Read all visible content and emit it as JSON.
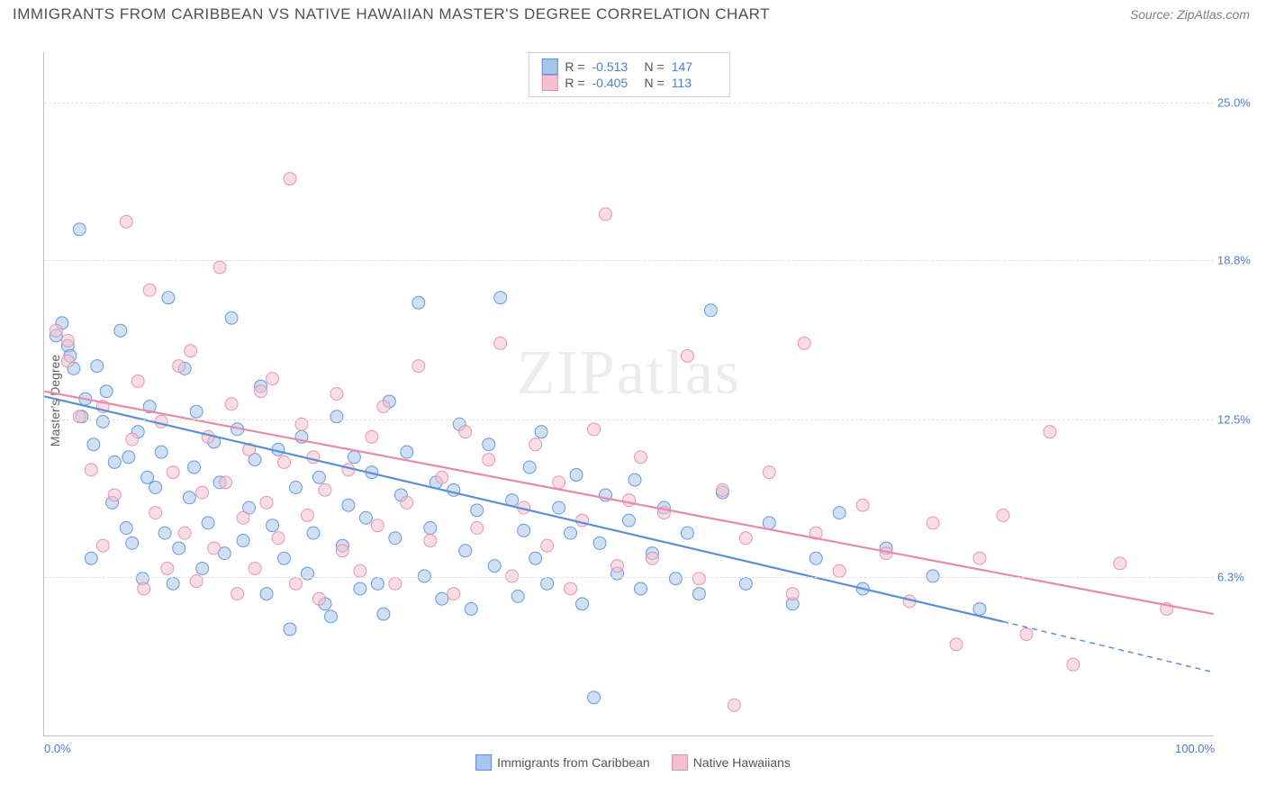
{
  "header": {
    "title": "IMMIGRANTS FROM CARIBBEAN VS NATIVE HAWAIIAN MASTER'S DEGREE CORRELATION CHART",
    "source": "Source: ZipAtlas.com"
  },
  "chart": {
    "type": "scatter",
    "ylabel": "Master's Degree",
    "watermark": "ZIPatlas",
    "background_color": "#ffffff",
    "grid_color": "#e0e0e0",
    "axis_color": "#c0c0c0",
    "tick_color": "#4a7fd6",
    "tick_fontsize": 13,
    "label_fontsize": 14,
    "xlim": [
      0,
      100
    ],
    "ylim": [
      0,
      27
    ],
    "yticks": [
      {
        "v": 6.3,
        "label": "6.3%"
      },
      {
        "v": 12.5,
        "label": "12.5%"
      },
      {
        "v": 18.8,
        "label": "18.8%"
      },
      {
        "v": 25.0,
        "label": "25.0%"
      }
    ],
    "xticks": [
      {
        "v": 0,
        "label": "0.0%"
      },
      {
        "v": 100,
        "label": "100.0%"
      }
    ],
    "marker_radius": 7,
    "marker_opacity": 0.55,
    "marker_stroke_opacity": 0.9,
    "series": [
      {
        "id": "caribbean",
        "label": "Immigrants from Caribbean",
        "fill": "#a8c6ed",
        "stroke": "#5b8fd6",
        "r": -0.513,
        "n": 147,
        "trend": {
          "x1": 0,
          "y1": 13.4,
          "x2": 82,
          "y2": 4.5,
          "ext_x2": 100,
          "ext_y2": 2.5,
          "width": 2.2
        },
        "points": [
          [
            1,
            15.8
          ],
          [
            1.5,
            16.3
          ],
          [
            2,
            15.4
          ],
          [
            2.2,
            15.0
          ],
          [
            2.5,
            14.5
          ],
          [
            3,
            20.0
          ],
          [
            3.2,
            12.6
          ],
          [
            3.5,
            13.3
          ],
          [
            4,
            7.0
          ],
          [
            4.2,
            11.5
          ],
          [
            4.5,
            14.6
          ],
          [
            5,
            12.4
          ],
          [
            5.3,
            13.6
          ],
          [
            5.8,
            9.2
          ],
          [
            6,
            10.8
          ],
          [
            6.5,
            16.0
          ],
          [
            7,
            8.2
          ],
          [
            7.2,
            11.0
          ],
          [
            7.5,
            7.6
          ],
          [
            8,
            12.0
          ],
          [
            8.4,
            6.2
          ],
          [
            8.8,
            10.2
          ],
          [
            9,
            13.0
          ],
          [
            9.5,
            9.8
          ],
          [
            10,
            11.2
          ],
          [
            10.3,
            8.0
          ],
          [
            10.6,
            17.3
          ],
          [
            11,
            6.0
          ],
          [
            11.5,
            7.4
          ],
          [
            12,
            14.5
          ],
          [
            12.4,
            9.4
          ],
          [
            12.8,
            10.6
          ],
          [
            13,
            12.8
          ],
          [
            13.5,
            6.6
          ],
          [
            14,
            8.4
          ],
          [
            14.5,
            11.6
          ],
          [
            15,
            10.0
          ],
          [
            15.4,
            7.2
          ],
          [
            16,
            16.5
          ],
          [
            16.5,
            12.1
          ],
          [
            17,
            7.7
          ],
          [
            17.5,
            9.0
          ],
          [
            18,
            10.9
          ],
          [
            18.5,
            13.8
          ],
          [
            19,
            5.6
          ],
          [
            19.5,
            8.3
          ],
          [
            20,
            11.3
          ],
          [
            20.5,
            7.0
          ],
          [
            21,
            4.2
          ],
          [
            21.5,
            9.8
          ],
          [
            22,
            11.8
          ],
          [
            22.5,
            6.4
          ],
          [
            23,
            8.0
          ],
          [
            23.5,
            10.2
          ],
          [
            24,
            5.2
          ],
          [
            24.5,
            4.7
          ],
          [
            25,
            12.6
          ],
          [
            25.5,
            7.5
          ],
          [
            26,
            9.1
          ],
          [
            26.5,
            11.0
          ],
          [
            27,
            5.8
          ],
          [
            27.5,
            8.6
          ],
          [
            28,
            10.4
          ],
          [
            28.5,
            6.0
          ],
          [
            29,
            4.8
          ],
          [
            29.5,
            13.2
          ],
          [
            30,
            7.8
          ],
          [
            30.5,
            9.5
          ],
          [
            31,
            11.2
          ],
          [
            32,
            17.1
          ],
          [
            32.5,
            6.3
          ],
          [
            33,
            8.2
          ],
          [
            33.5,
            10.0
          ],
          [
            34,
            5.4
          ],
          [
            35,
            9.7
          ],
          [
            35.5,
            12.3
          ],
          [
            36,
            7.3
          ],
          [
            36.5,
            5.0
          ],
          [
            37,
            8.9
          ],
          [
            38,
            11.5
          ],
          [
            38.5,
            6.7
          ],
          [
            39,
            17.3
          ],
          [
            40,
            9.3
          ],
          [
            40.5,
            5.5
          ],
          [
            41,
            8.1
          ],
          [
            41.5,
            10.6
          ],
          [
            42,
            7.0
          ],
          [
            42.5,
            12.0
          ],
          [
            43,
            6.0
          ],
          [
            44,
            9.0
          ],
          [
            45,
            8.0
          ],
          [
            45.5,
            10.3
          ],
          [
            46,
            5.2
          ],
          [
            47,
            1.5
          ],
          [
            47.5,
            7.6
          ],
          [
            48,
            9.5
          ],
          [
            49,
            6.4
          ],
          [
            50,
            8.5
          ],
          [
            50.5,
            10.1
          ],
          [
            51,
            5.8
          ],
          [
            52,
            7.2
          ],
          [
            53,
            9.0
          ],
          [
            54,
            6.2
          ],
          [
            55,
            8.0
          ],
          [
            56,
            5.6
          ],
          [
            57,
            16.8
          ],
          [
            58,
            9.6
          ],
          [
            60,
            6.0
          ],
          [
            62,
            8.4
          ],
          [
            64,
            5.2
          ],
          [
            66,
            7.0
          ],
          [
            68,
            8.8
          ],
          [
            70,
            5.8
          ],
          [
            72,
            7.4
          ],
          [
            76,
            6.3
          ],
          [
            80,
            5.0
          ]
        ]
      },
      {
        "id": "hawaiian",
        "label": "Native Hawaiians",
        "fill": "#f4c1ce",
        "stroke": "#e78bab",
        "r": -0.405,
        "n": 113,
        "trend": {
          "x1": 0,
          "y1": 13.6,
          "x2": 100,
          "y2": 4.8,
          "width": 2.2
        },
        "points": [
          [
            1,
            16.0
          ],
          [
            2,
            14.8
          ],
          [
            2,
            15.6
          ],
          [
            3,
            12.6
          ],
          [
            4,
            10.5
          ],
          [
            5,
            13.0
          ],
          [
            5,
            7.5
          ],
          [
            6,
            9.5
          ],
          [
            7,
            20.3
          ],
          [
            7.5,
            11.7
          ],
          [
            8,
            14.0
          ],
          [
            8.5,
            5.8
          ],
          [
            9,
            17.6
          ],
          [
            9.5,
            8.8
          ],
          [
            10,
            12.4
          ],
          [
            10.5,
            6.6
          ],
          [
            11,
            10.4
          ],
          [
            11.5,
            14.6
          ],
          [
            12,
            8.0
          ],
          [
            12.5,
            15.2
          ],
          [
            13,
            6.1
          ],
          [
            13.5,
            9.6
          ],
          [
            14,
            11.8
          ],
          [
            14.5,
            7.4
          ],
          [
            15,
            18.5
          ],
          [
            15.5,
            10.0
          ],
          [
            16,
            13.1
          ],
          [
            16.5,
            5.6
          ],
          [
            17,
            8.6
          ],
          [
            17.5,
            11.3
          ],
          [
            18,
            6.6
          ],
          [
            18.5,
            13.6
          ],
          [
            19,
            9.2
          ],
          [
            19.5,
            14.1
          ],
          [
            20,
            7.8
          ],
          [
            20.5,
            10.8
          ],
          [
            21,
            22.0
          ],
          [
            21.5,
            6.0
          ],
          [
            22,
            12.3
          ],
          [
            22.5,
            8.7
          ],
          [
            23,
            11.0
          ],
          [
            23.5,
            5.4
          ],
          [
            24,
            9.7
          ],
          [
            25,
            13.5
          ],
          [
            25.5,
            7.3
          ],
          [
            26,
            10.5
          ],
          [
            27,
            6.5
          ],
          [
            28,
            11.8
          ],
          [
            28.5,
            8.3
          ],
          [
            29,
            13.0
          ],
          [
            30,
            6.0
          ],
          [
            31,
            9.2
          ],
          [
            32,
            14.6
          ],
          [
            33,
            7.7
          ],
          [
            34,
            10.2
          ],
          [
            35,
            5.6
          ],
          [
            36,
            12.0
          ],
          [
            37,
            8.2
          ],
          [
            38,
            10.9
          ],
          [
            39,
            15.5
          ],
          [
            40,
            6.3
          ],
          [
            41,
            9.0
          ],
          [
            42,
            11.5
          ],
          [
            43,
            7.5
          ],
          [
            44,
            10.0
          ],
          [
            45,
            5.8
          ],
          [
            46,
            8.5
          ],
          [
            47,
            12.1
          ],
          [
            48,
            20.6
          ],
          [
            49,
            6.7
          ],
          [
            50,
            9.3
          ],
          [
            51,
            11.0
          ],
          [
            52,
            7.0
          ],
          [
            53,
            8.8
          ],
          [
            55,
            15.0
          ],
          [
            56,
            6.2
          ],
          [
            58,
            9.7
          ],
          [
            59,
            1.2
          ],
          [
            60,
            7.8
          ],
          [
            62,
            10.4
          ],
          [
            64,
            5.6
          ],
          [
            65,
            15.5
          ],
          [
            66,
            8.0
          ],
          [
            68,
            6.5
          ],
          [
            70,
            9.1
          ],
          [
            72,
            7.2
          ],
          [
            74,
            5.3
          ],
          [
            76,
            8.4
          ],
          [
            78,
            3.6
          ],
          [
            80,
            7.0
          ],
          [
            82,
            8.7
          ],
          [
            84,
            4.0
          ],
          [
            86,
            12.0
          ],
          [
            88,
            2.8
          ],
          [
            92,
            6.8
          ],
          [
            96,
            5.0
          ]
        ]
      }
    ],
    "legend_bottom": [
      {
        "series": "caribbean"
      },
      {
        "series": "hawaiian"
      }
    ]
  }
}
